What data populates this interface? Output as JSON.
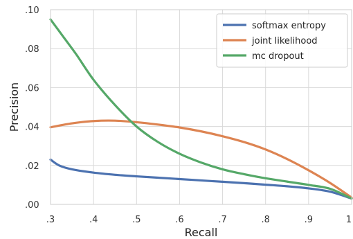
{
  "chart_data": {
    "type": "line",
    "xlabel": "Recall",
    "ylabel": "Precision",
    "xlim": [
      0.3,
      1.0
    ],
    "ylim": [
      0.0,
      0.1
    ],
    "x_ticks": [
      0.3,
      0.4,
      0.5,
      0.6,
      0.7,
      0.8,
      0.9,
      1.0
    ],
    "x_tick_labels": [
      ".3",
      ".4",
      ".5",
      ".6",
      ".7",
      ".8",
      ".9",
      "1"
    ],
    "y_ticks": [
      0.0,
      0.02,
      0.04,
      0.06,
      0.08,
      0.1
    ],
    "y_tick_labels": [
      ".00",
      ".02",
      ".04",
      ".06",
      ".08",
      ".10"
    ],
    "grid": true,
    "legend_position": "top-right",
    "series": [
      {
        "name": "softmax entropy",
        "color": "#4c72b0",
        "x": [
          0.3,
          0.32,
          0.35,
          0.4,
          0.45,
          0.5,
          0.55,
          0.6,
          0.65,
          0.7,
          0.75,
          0.8,
          0.85,
          0.9,
          0.95,
          1.0
        ],
        "y": [
          0.023,
          0.02,
          0.018,
          0.0163,
          0.0152,
          0.0144,
          0.0137,
          0.013,
          0.0123,
          0.0116,
          0.0109,
          0.0101,
          0.0093,
          0.0082,
          0.0065,
          0.003
        ]
      },
      {
        "name": "joint likelihood",
        "color": "#dd8452",
        "x": [
          0.3,
          0.35,
          0.4,
          0.45,
          0.5,
          0.55,
          0.6,
          0.65,
          0.7,
          0.75,
          0.8,
          0.85,
          0.9,
          0.95,
          1.0
        ],
        "y": [
          0.0396,
          0.0416,
          0.0428,
          0.043,
          0.0422,
          0.041,
          0.0395,
          0.0375,
          0.035,
          0.032,
          0.0282,
          0.0233,
          0.0175,
          0.011,
          0.0035
        ]
      },
      {
        "name": "mc dropout",
        "color": "#55a868",
        "x": [
          0.3,
          0.33,
          0.36,
          0.4,
          0.45,
          0.5,
          0.55,
          0.6,
          0.65,
          0.7,
          0.75,
          0.8,
          0.85,
          0.9,
          0.95,
          1.0
        ],
        "y": [
          0.095,
          0.086,
          0.077,
          0.064,
          0.051,
          0.04,
          0.032,
          0.026,
          0.0215,
          0.018,
          0.0155,
          0.0134,
          0.0117,
          0.01,
          0.008,
          0.003
        ]
      }
    ]
  }
}
